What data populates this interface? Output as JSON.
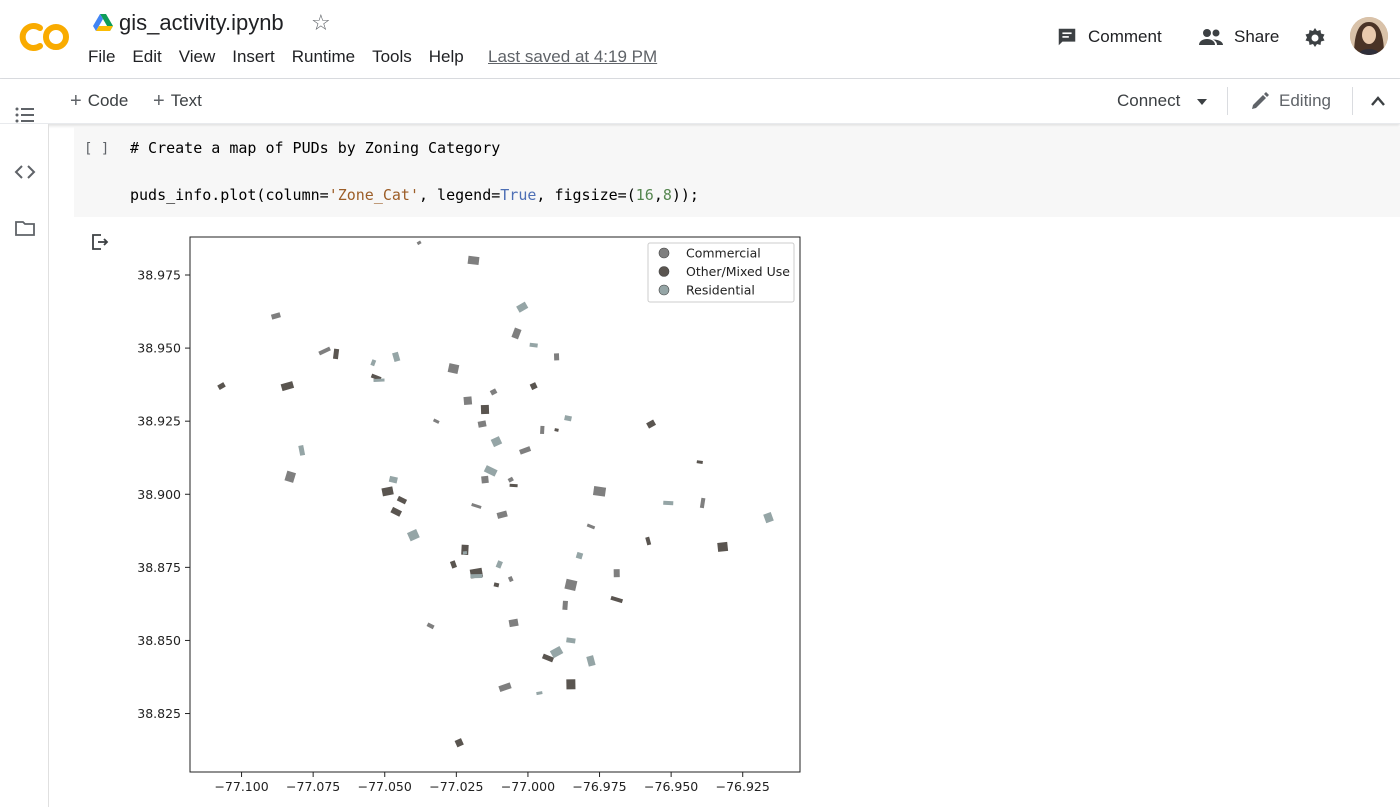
{
  "header": {
    "logo_text": "CO",
    "title": "gis_activity.ipynb",
    "menu": [
      "File",
      "Edit",
      "View",
      "Insert",
      "Runtime",
      "Tools",
      "Help"
    ],
    "last_saved": "Last saved at 4:19 PM",
    "comment_label": "Comment",
    "share_label": "Share"
  },
  "toolbar": {
    "add_code_label": "Code",
    "add_text_label": "Text",
    "connect_label": "Connect",
    "editing_label": "Editing"
  },
  "cell": {
    "run_indicator": "[ ]",
    "line1": "# Create a map of PUDs by Zoning Category",
    "line2_prefix": "puds_info.plot(column=",
    "line2_str": "'Zone_Cat'",
    "line2_mid": ", legend=",
    "line2_kw": "True",
    "line2_mid2": ", figsize=(",
    "line2_n1": "16",
    "line2_comma": ",",
    "line2_n2": "8",
    "line2_end": "));"
  },
  "colors": {
    "commercial": "#7f7f7f",
    "other_mixed": "#5a5550",
    "residential": "#95a5a6"
  },
  "chart_data": {
    "type": "scatter",
    "title": "",
    "xlabel": "",
    "ylabel": "",
    "xlim": [
      -77.118,
      -76.905
    ],
    "ylim": [
      38.805,
      38.988
    ],
    "x_ticks": [
      -77.1,
      -77.075,
      -77.05,
      -77.025,
      -77.0,
      -76.975,
      -76.95,
      -76.925
    ],
    "x_tick_labels": [
      "−77.100",
      "−77.075",
      "−77.050",
      "−77.025",
      "−77.000",
      "−76.975",
      "−76.950",
      "−76.925"
    ],
    "y_ticks": [
      38.975,
      38.95,
      38.925,
      38.9,
      38.875,
      38.85,
      38.825
    ],
    "y_tick_labels": [
      "38.975",
      "38.950",
      "38.925",
      "38.900",
      "38.875",
      "38.850",
      "38.825"
    ],
    "grid": false,
    "legend_position": "top-right",
    "series": [
      {
        "name": "Commercial",
        "color": "#7f7f7f",
        "points": [
          [
            -77.038,
            38.986
          ],
          [
            -77.019,
            38.98
          ],
          [
            -77.088,
            38.961
          ],
          [
            -77.004,
            38.955
          ],
          [
            -76.99,
            38.947
          ],
          [
            -77.071,
            38.949
          ],
          [
            -77.026,
            38.943
          ],
          [
            -77.016,
            38.924
          ],
          [
            -77.032,
            38.925
          ],
          [
            -76.995,
            38.922
          ],
          [
            -77.001,
            38.915
          ],
          [
            -77.083,
            38.906
          ],
          [
            -77.015,
            38.905
          ],
          [
            -77.006,
            38.905
          ],
          [
            -76.975,
            38.901
          ],
          [
            -77.009,
            38.893
          ],
          [
            -76.978,
            38.889
          ],
          [
            -76.969,
            38.873
          ],
          [
            -77.006,
            38.871
          ],
          [
            -76.985,
            38.869
          ],
          [
            -77.005,
            38.856
          ],
          [
            -77.034,
            38.855
          ],
          [
            -76.987,
            38.862
          ],
          [
            -77.008,
            38.834
          ],
          [
            -77.018,
            38.896
          ],
          [
            -77.021,
            38.932
          ],
          [
            -77.012,
            38.935
          ],
          [
            -76.939,
            38.897
          ]
        ]
      },
      {
        "name": "Other/Mixed Use",
        "color": "#5a5550",
        "points": [
          [
            -77.107,
            38.937
          ],
          [
            -77.067,
            38.948
          ],
          [
            -77.084,
            38.937
          ],
          [
            -77.053,
            38.94
          ],
          [
            -77.015,
            38.929
          ],
          [
            -76.998,
            38.937
          ],
          [
            -76.99,
            38.922
          ],
          [
            -77.049,
            38.901
          ],
          [
            -77.044,
            38.898
          ],
          [
            -77.022,
            38.881
          ],
          [
            -77.026,
            38.876
          ],
          [
            -76.969,
            38.864
          ],
          [
            -76.932,
            38.882
          ],
          [
            -76.957,
            38.924
          ],
          [
            -76.94,
            38.911
          ],
          [
            -76.958,
            38.884
          ],
          [
            -76.993,
            38.844
          ],
          [
            -76.985,
            38.835
          ],
          [
            -77.024,
            38.815
          ],
          [
            -77.011,
            38.869
          ],
          [
            -77.018,
            38.873
          ],
          [
            -77.046,
            38.894
          ],
          [
            -77.005,
            38.903
          ]
        ]
      },
      {
        "name": "Residential",
        "color": "#95a5a6",
        "points": [
          [
            -77.002,
            38.964
          ],
          [
            -76.998,
            38.951
          ],
          [
            -77.046,
            38.947
          ],
          [
            -77.054,
            38.945
          ],
          [
            -77.052,
            38.939
          ],
          [
            -77.011,
            38.918
          ],
          [
            -76.986,
            38.926
          ],
          [
            -77.079,
            38.915
          ],
          [
            -77.013,
            38.908
          ],
          [
            -76.951,
            38.897
          ],
          [
            -76.916,
            38.892
          ],
          [
            -76.982,
            38.879
          ],
          [
            -77.022,
            38.88
          ],
          [
            -76.99,
            38.846
          ],
          [
            -76.985,
            38.85
          ],
          [
            -76.978,
            38.843
          ],
          [
            -77.01,
            38.876
          ],
          [
            -77.018,
            38.872
          ],
          [
            -77.04,
            38.886
          ],
          [
            -77.047,
            38.905
          ],
          [
            -76.996,
            38.832
          ]
        ]
      }
    ],
    "legend": [
      "Commercial",
      "Other/Mixed Use",
      "Residential"
    ]
  }
}
